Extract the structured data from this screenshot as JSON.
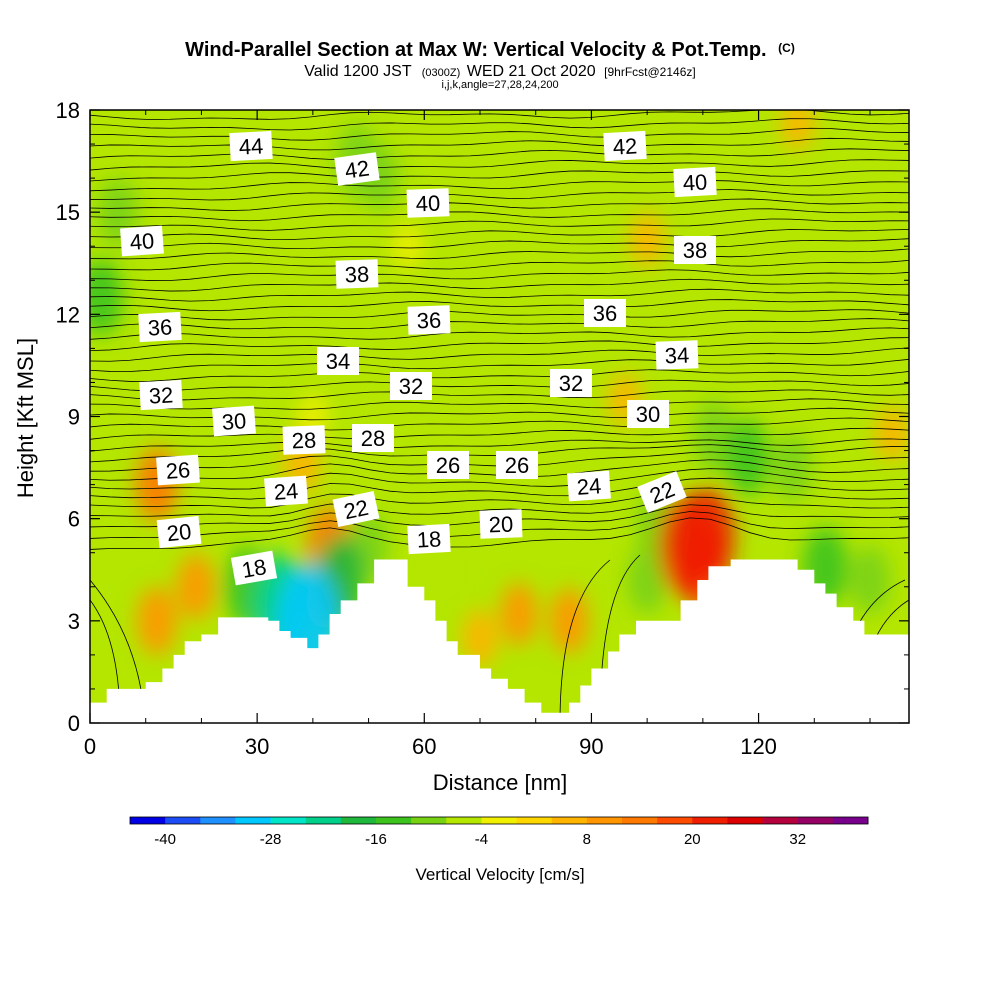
{
  "chart_data": {
    "type": "heatmap",
    "title": "Wind-Parallel Section at Max W: Vertical Velocity & Pot.Temp.",
    "title_mark": "(C)",
    "subtitle_parts": [
      "Valid 1200 JST",
      "(0300Z)",
      "WED 21 Oct 2020",
      "[9hrFcst@2146z]"
    ],
    "subtitle2": "i,j,k,angle=27,28,24,200",
    "xlabel": "Distance [nm]",
    "ylabel": "Height [Kft MSL]",
    "xlim": [
      0,
      147
    ],
    "ylim": [
      0,
      18
    ],
    "x_ticks": [
      0,
      30,
      60,
      90,
      120
    ],
    "y_ticks": [
      0,
      3,
      6,
      9,
      12,
      15,
      18
    ],
    "colorbar": {
      "label": "Vertical Velocity [cm/s]",
      "min": -44,
      "step": 4,
      "tick_values": [
        -40,
        -28,
        -16,
        -4,
        8,
        20,
        32
      ],
      "colors": [
        "#0000e6",
        "#1b4cf5",
        "#1e90ff",
        "#00c8ff",
        "#00e5c8",
        "#00d08a",
        "#1fb83c",
        "#3cc31e",
        "#78d214",
        "#b4e600",
        "#f0f000",
        "#ffd700",
        "#ffb400",
        "#ff9600",
        "#ff7800",
        "#ff4b00",
        "#f01e00",
        "#dc0000",
        "#b4003c",
        "#960064",
        "#78008c"
      ]
    },
    "terrain_kft": [
      [
        0,
        0.6
      ],
      [
        3,
        0.6
      ],
      [
        3,
        1.0
      ],
      [
        10,
        1.0
      ],
      [
        10,
        1.2
      ],
      [
        13,
        1.2
      ],
      [
        13,
        1.6
      ],
      [
        15,
        1.6
      ],
      [
        15,
        2.0
      ],
      [
        17,
        2.0
      ],
      [
        17,
        2.4
      ],
      [
        20,
        2.4
      ],
      [
        20,
        2.6
      ],
      [
        23,
        2.6
      ],
      [
        23,
        3.1
      ],
      [
        32,
        3.1
      ],
      [
        32,
        3.0
      ],
      [
        34,
        3.0
      ],
      [
        34,
        2.7
      ],
      [
        36,
        2.7
      ],
      [
        36,
        2.5
      ],
      [
        39,
        2.5
      ],
      [
        39,
        2.2
      ],
      [
        41,
        2.2
      ],
      [
        41,
        2.6
      ],
      [
        43,
        2.6
      ],
      [
        43,
        3.2
      ],
      [
        45,
        3.2
      ],
      [
        45,
        3.6
      ],
      [
        48,
        3.6
      ],
      [
        48,
        4.1
      ],
      [
        51,
        4.1
      ],
      [
        51,
        4.8
      ],
      [
        57,
        4.8
      ],
      [
        57,
        4.0
      ],
      [
        60,
        4.0
      ],
      [
        60,
        3.6
      ],
      [
        62,
        3.6
      ],
      [
        62,
        3.0
      ],
      [
        64,
        3.0
      ],
      [
        64,
        2.4
      ],
      [
        66,
        2.4
      ],
      [
        66,
        2.0
      ],
      [
        70,
        2.0
      ],
      [
        70,
        1.6
      ],
      [
        72,
        1.6
      ],
      [
        72,
        1.3
      ],
      [
        75,
        1.3
      ],
      [
        75,
        1.0
      ],
      [
        78,
        1.0
      ],
      [
        78,
        0.6
      ],
      [
        81,
        0.6
      ],
      [
        81,
        0.3
      ],
      [
        86,
        0.3
      ],
      [
        86,
        0.6
      ],
      [
        88,
        0.6
      ],
      [
        88,
        1.1
      ],
      [
        90,
        1.1
      ],
      [
        90,
        1.6
      ],
      [
        93,
        1.6
      ],
      [
        93,
        2.1
      ],
      [
        95,
        2.1
      ],
      [
        95,
        2.6
      ],
      [
        98,
        2.6
      ],
      [
        98,
        3.0
      ],
      [
        106,
        3.0
      ],
      [
        106,
        3.6
      ],
      [
        109,
        3.6
      ],
      [
        109,
        4.2
      ],
      [
        111,
        4.2
      ],
      [
        111,
        4.6
      ],
      [
        115,
        4.6
      ],
      [
        115,
        4.8
      ],
      [
        127,
        4.8
      ],
      [
        127,
        4.5
      ],
      [
        130,
        4.5
      ],
      [
        130,
        4.1
      ],
      [
        132,
        4.1
      ],
      [
        132,
        3.8
      ],
      [
        134,
        3.8
      ],
      [
        134,
        3.4
      ],
      [
        137,
        3.4
      ],
      [
        137,
        3.0
      ],
      [
        139,
        3.0
      ],
      [
        139,
        2.6
      ],
      [
        147,
        2.6
      ]
    ],
    "theta_label_values": [
      "44",
      "42",
      "42",
      "40",
      "40",
      "40",
      "38",
      "38",
      "36",
      "36",
      "36",
      "34",
      "34",
      "32",
      "32",
      "32",
      "30",
      "30",
      "28",
      "28",
      "26",
      "26",
      "26",
      "24",
      "24",
      "22",
      "22",
      "20",
      "20",
      "18",
      "18"
    ],
    "field_blobs": [
      {
        "x": 40,
        "y": 9,
        "w": -2
      },
      {
        "x": 2,
        "y": 12.5,
        "w": -13
      },
      {
        "x": 5,
        "y": 15,
        "w": -10
      },
      {
        "x": 48,
        "y": 16.5,
        "w": -12
      },
      {
        "x": 52,
        "y": 16,
        "w": -9
      },
      {
        "x": 17,
        "y": 16,
        "w": -6
      },
      {
        "x": 12,
        "y": 7,
        "w": 12
      },
      {
        "x": 12,
        "y": 3,
        "w": 10
      },
      {
        "x": 19,
        "y": 4,
        "w": 9
      },
      {
        "x": 38,
        "y": 7.6,
        "w": 7
      },
      {
        "x": 43,
        "y": 5.2,
        "w": 14
      },
      {
        "x": 43,
        "y": 3.8,
        "w": 10
      },
      {
        "x": 34,
        "y": 3.4,
        "w": -24
      },
      {
        "x": 39,
        "y": 2.8,
        "w": -32
      },
      {
        "x": 45,
        "y": 4.2,
        "w": -18
      },
      {
        "x": 50,
        "y": 5.2,
        "w": -10
      },
      {
        "x": 28,
        "y": 4.0,
        "w": -14
      },
      {
        "x": 63,
        "y": 4.5,
        "w": -8
      },
      {
        "x": 77,
        "y": 3.2,
        "w": 8
      },
      {
        "x": 86,
        "y": 3.0,
        "w": 9
      },
      {
        "x": 70,
        "y": 2.5,
        "w": 6
      },
      {
        "x": 100,
        "y": 4.2,
        "w": -10
      },
      {
        "x": 102,
        "y": 5.8,
        "w": -12
      },
      {
        "x": 96,
        "y": 9.5,
        "w": 4
      },
      {
        "x": 107,
        "y": 5.2,
        "w": 22
      },
      {
        "x": 111,
        "y": 5.5,
        "w": 20
      },
      {
        "x": 110,
        "y": 4.6,
        "w": 18
      },
      {
        "x": 118,
        "y": 7.8,
        "w": -13
      },
      {
        "x": 112,
        "y": 8.4,
        "w": -12
      },
      {
        "x": 126,
        "y": 7.5,
        "w": -10
      },
      {
        "x": 132,
        "y": 4.6,
        "w": -14
      },
      {
        "x": 140,
        "y": 4.2,
        "w": -10
      },
      {
        "x": 100,
        "y": 14.2,
        "w": 5
      },
      {
        "x": 127,
        "y": 17.6,
        "w": 4
      },
      {
        "x": 144,
        "y": 8.5,
        "w": 5
      },
      {
        "x": 57,
        "y": 14,
        "w": -2
      }
    ]
  }
}
